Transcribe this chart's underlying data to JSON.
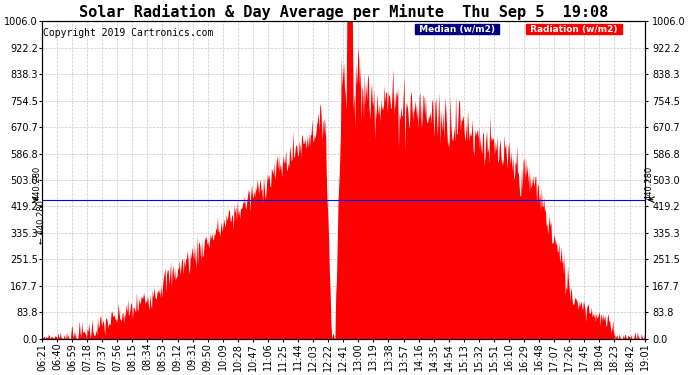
{
  "title": "Solar Radiation & Day Average per Minute  Thu Sep 5  19:08",
  "copyright": "Copyright 2019 Cartronics.com",
  "legend_median_label": "Median (w/m2)",
  "legend_radiation_label": "Radiation (w/m2)",
  "median_value": 440.28,
  "ymin": 0.0,
  "ymax": 1006.0,
  "yticks": [
    0.0,
    83.8,
    167.7,
    251.5,
    335.3,
    419.2,
    503.0,
    586.8,
    670.7,
    754.5,
    838.3,
    922.2,
    1006.0
  ],
  "ytick_labels": [
    "0.0",
    "83.8",
    "167.7",
    "251.5",
    "335.3",
    "419.2",
    "503.0",
    "586.8",
    "670.7",
    "754.5",
    "838.3",
    "922.2",
    "1006.0"
  ],
  "xtick_labels": [
    "06:21",
    "06:40",
    "06:59",
    "07:18",
    "07:37",
    "07:56",
    "08:15",
    "08:34",
    "08:53",
    "09:12",
    "09:31",
    "09:50",
    "10:09",
    "10:28",
    "10:47",
    "11:06",
    "11:25",
    "11:44",
    "12:03",
    "12:22",
    "12:41",
    "13:00",
    "13:19",
    "13:38",
    "13:57",
    "14:16",
    "14:35",
    "14:54",
    "15:13",
    "15:32",
    "15:51",
    "16:10",
    "16:29",
    "16:48",
    "17:07",
    "17:26",
    "17:45",
    "18:04",
    "18:23",
    "18:42",
    "19:01"
  ],
  "background_color": "#ffffff",
  "fill_color": "#ff0000",
  "median_line_color": "#0000ff",
  "grid_color": "#c8c8c8",
  "title_fontsize": 11,
  "copyright_fontsize": 7,
  "tick_fontsize": 7,
  "legend_median_bg": "#000080",
  "legend_radiation_bg": "#ff0000"
}
